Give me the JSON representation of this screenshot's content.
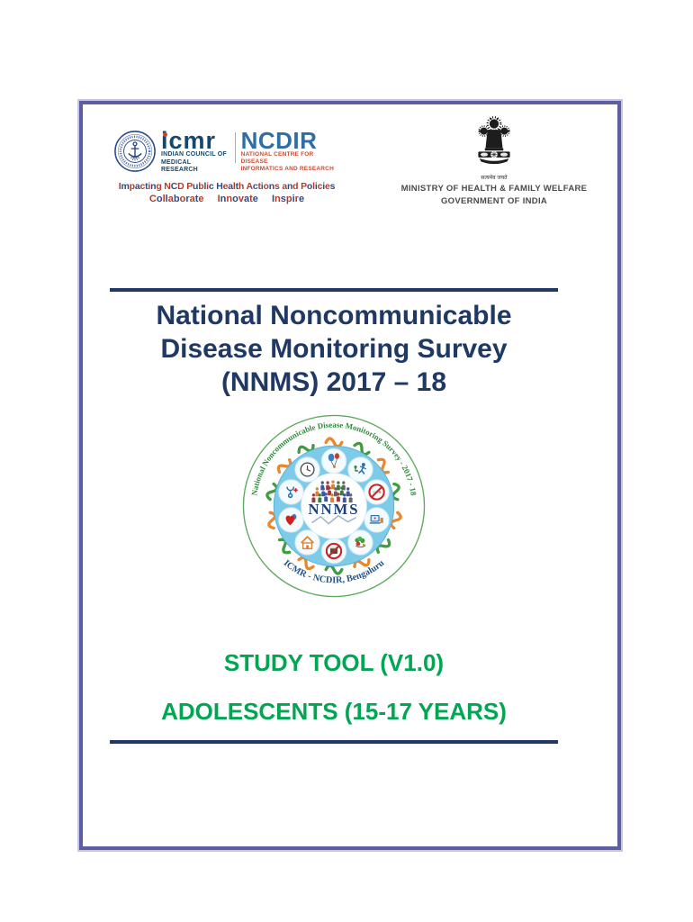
{
  "colors": {
    "navy": "#1f3864",
    "green": "#00a651",
    "frame_inner": "#5d5da3",
    "frame_outer": "#c6c6e2",
    "icmr_dark": "#15486e",
    "ncdir_blue": "#2d6da8",
    "ncdir_red": "#cc4b33",
    "logo_sky_blue": "#7ecbe9",
    "logo_orange": "#e8872e",
    "logo_green": "#3f9c3f",
    "tagline": [
      "#b83a26",
      "#2d4a8a"
    ]
  },
  "header": {
    "icmr": {
      "wordmark": "icmr",
      "council_line1": "INDIAN COUNCIL OF",
      "council_line2": "MEDICAL RESEARCH",
      "ncdir_wordmark": "NCDIR",
      "ncdir_line1": "NATIONAL CENTRE FOR DISEASE",
      "ncdir_line2": "INFORMATICS AND RESEARCH",
      "tagline_line1": "Impacting NCD Public Health Actions and Policies",
      "tagline_line2": "Collaborate Innovate Inspire"
    },
    "ministry": {
      "motto": "सत्यमेव जयते",
      "line1": "MINISTRY OF HEALTH & FAMILY WELFARE",
      "line2": "GOVERNMENT OF INDIA"
    }
  },
  "title": {
    "line1": "National Noncommunicable",
    "line2": "Disease Monitoring Survey",
    "line3": "(NNMS) 2017 – 18"
  },
  "nnms_logo": {
    "ring_text_top": "National Noncommunicable Disease Monitoring Survey - 2017 - 18",
    "ring_text_bottom": "ICMR - NCDIR, Bengaluru",
    "center_acronym": "NNMS",
    "icons": [
      "clock-icon",
      "balloons-icon",
      "physical-activity-icon",
      "no-smoking-icon",
      "devices-icon",
      "healthy-diet-icon",
      "no-tobacco-icon",
      "household-icon",
      "heart-lungs-icon",
      "medical-check-icon"
    ]
  },
  "footer": {
    "study_tool": "STUDY TOOL (V1.0)",
    "audience": "ADOLESCENTS (15-17 YEARS)"
  }
}
